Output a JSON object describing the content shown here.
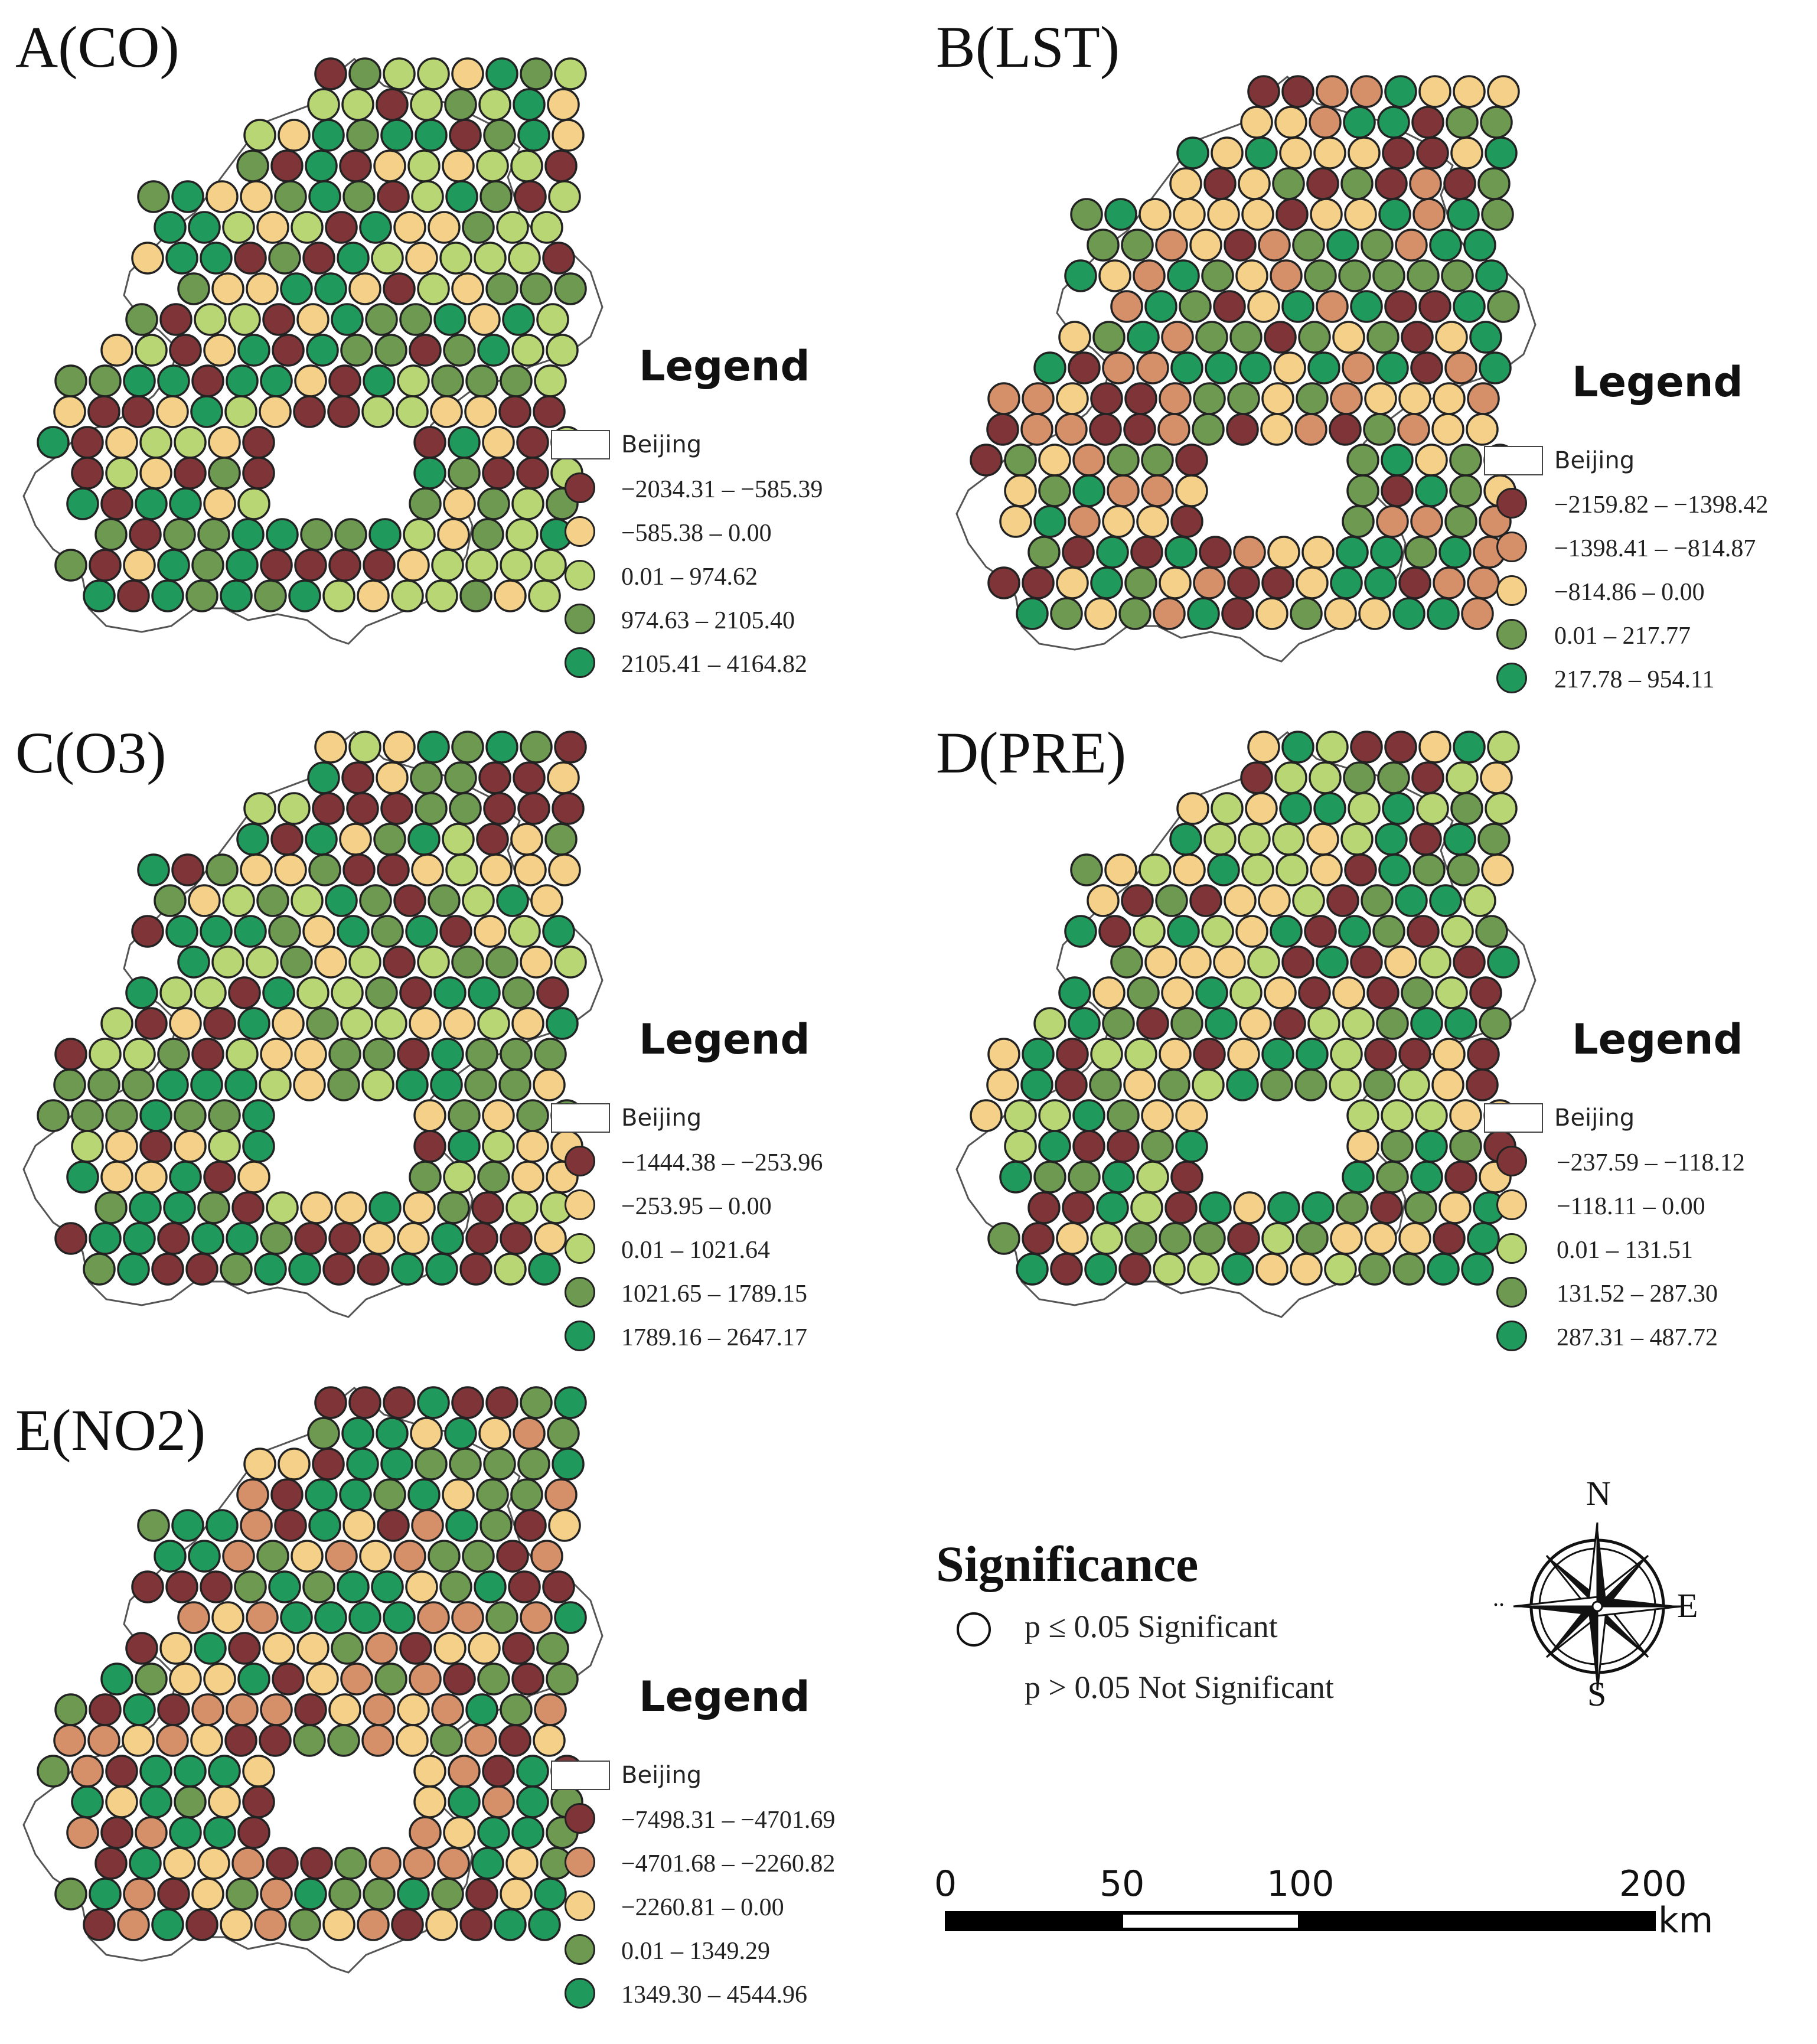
{
  "panels": [
    {
      "id": "A",
      "title": "A(CO)",
      "legend": {
        "title": "Legend",
        "boundary_label": "Beijing",
        "classes": [
          {
            "label": "−2034.31 – −585.39",
            "color": "#7f3538"
          },
          {
            "label": "−585.38 – 0.00",
            "color": "#f4d088"
          },
          {
            "label": "0.01 – 974.62",
            "color": "#b8d774"
          },
          {
            "label": "974.63 – 2105.40",
            "color": "#6d9a50"
          },
          {
            "label": "2105.41 – 4164.82",
            "color": "#1f9a5c"
          }
        ]
      }
    },
    {
      "id": "B",
      "title": "B(LST)",
      "legend": {
        "title": "Legend",
        "boundary_label": "Beijing",
        "classes": [
          {
            "label": "−2159.82 – −1398.42",
            "color": "#7f3538"
          },
          {
            "label": "−1398.41 – −814.87",
            "color": "#d5906a"
          },
          {
            "label": "−814.86 – 0.00",
            "color": "#f4d088"
          },
          {
            "label": "0.01 – 217.77",
            "color": "#6d9a50"
          },
          {
            "label": "217.78 – 954.11",
            "color": "#1f9a5c"
          }
        ]
      }
    },
    {
      "id": "C",
      "title": "C(O3)",
      "legend": {
        "title": "Legend",
        "boundary_label": "Beijing",
        "classes": [
          {
            "label": "−1444.38 – −253.96",
            "color": "#7f3538"
          },
          {
            "label": "−253.95 – 0.00",
            "color": "#f4d088"
          },
          {
            "label": "0.01 – 1021.64",
            "color": "#b8d774"
          },
          {
            "label": "1021.65 – 1789.15",
            "color": "#6d9a50"
          },
          {
            "label": "1789.16 – 2647.17",
            "color": "#1f9a5c"
          }
        ]
      }
    },
    {
      "id": "D",
      "title": "D(PRE)",
      "legend": {
        "title": "Legend",
        "boundary_label": "Beijing",
        "classes": [
          {
            "label": "−237.59 – −118.12",
            "color": "#7f3538"
          },
          {
            "label": "−118.11 – 0.00",
            "color": "#f4d088"
          },
          {
            "label": "0.01 – 131.51",
            "color": "#b8d774"
          },
          {
            "label": "131.52 – 287.30",
            "color": "#6d9a50"
          },
          {
            "label": "287.31 – 487.72",
            "color": "#1f9a5c"
          }
        ]
      }
    },
    {
      "id": "E",
      "title": "E(NO2)",
      "legend": {
        "title": "Legend",
        "boundary_label": "Beijing",
        "classes": [
          {
            "label": "−7498.31 – −4701.69",
            "color": "#7f3538"
          },
          {
            "label": "−4701.68 – −2260.82",
            "color": "#d5906a"
          },
          {
            "label": "−2260.81 – 0.00",
            "color": "#f4d088"
          },
          {
            "label": "0.01 – 1349.29",
            "color": "#6d9a50"
          },
          {
            "label": "1349.30 – 4544.96",
            "color": "#1f9a5c"
          }
        ]
      }
    }
  ],
  "significance": {
    "title": "Significance",
    "items": [
      {
        "label": "p ≤ 0.05 Significant",
        "symbol": "outlined-circle"
      },
      {
        "label": "p > 0.05 Not Significant",
        "symbol": "none"
      }
    ]
  },
  "scale_bar": {
    "ticks": [
      "0",
      "50",
      "100",
      "200"
    ],
    "unit": "km"
  },
  "north_arrow": {
    "north": "N",
    "east": "E",
    "south": "S",
    "west": ".."
  }
}
